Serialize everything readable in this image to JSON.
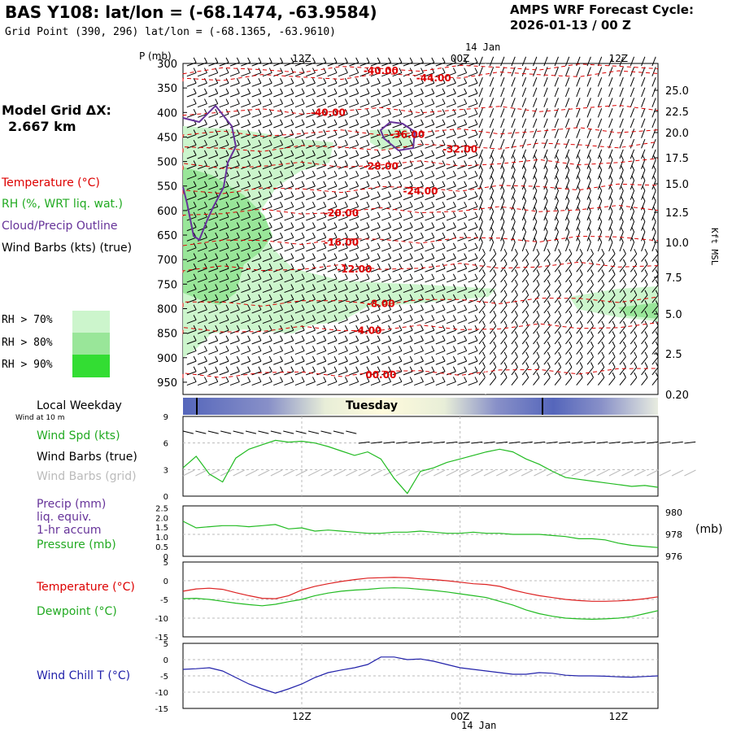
{
  "header": {
    "title": "BAS Y108:  lat/lon = (-68.1474, -63.9584)",
    "grid_point": "Grid Point (390, 296) lat/lon = (-68.1365, -63.9610)",
    "cycle_line1": "AMPS WRF Forecast Cycle:",
    "cycle_line2": "2026-01-13 / 00  Z"
  },
  "model_grid": {
    "label": "Model Grid ΔX:",
    "value": "2.667 km"
  },
  "legend": {
    "temperature": "Temperature (°C)",
    "rh": "RH (%, WRT liq. wat.)",
    "cloud": "Cloud/Precip Outline",
    "wind_barbs": "Wind Barbs (kts) (true)",
    "rh70": "RH > 70%",
    "rh80": "RH > 80%",
    "rh90": "RH > 90%",
    "colors": {
      "rh70": "#ccf5cc",
      "rh80": "#99e699",
      "rh90": "#33dd33",
      "temp": "#dd0000",
      "cloud": "#663399",
      "barb": "#000000"
    }
  },
  "top_axis": {
    "p_label": "P (mb)",
    "date_label": "14 Jan",
    "time_labels": [
      "12Z",
      "00Z",
      "12Z"
    ],
    "pressure_ticks": [
      "300",
      "350",
      "400",
      "450",
      "500",
      "550",
      "600",
      "650",
      "700",
      "750",
      "800",
      "850",
      "900",
      "950"
    ],
    "height_ticks": [
      "25.0",
      "22.5",
      "20.0",
      "17.5",
      "15.0",
      "12.5",
      "10.0",
      "7.5",
      "5.0",
      "2.5",
      "0.20"
    ],
    "height_label": "Kft MSL"
  },
  "day_bar": {
    "label": "Tuesday",
    "side_label": "Local Weekday",
    "wind_note": "Wind at 10 m"
  },
  "panels": {
    "wind": {
      "spd_label": "Wind Spd (kts)",
      "barbs_true_label": "Wind Barbs (true)",
      "barbs_grid_label": "Wind Barbs (grid)",
      "y_ticks": [
        "9",
        "6",
        "3",
        "0"
      ]
    },
    "precip": {
      "precip_label": "Precip (mm)",
      "liq_label": "liq. equiv.",
      "accum_label": "1-hr accum",
      "pressure_label": "Pressure (mb)",
      "y_ticks_left": [
        "2.5",
        "2.0",
        "1.5",
        "1.0",
        "0.5",
        "0"
      ],
      "y_ticks_right": [
        "980",
        "978",
        "976"
      ],
      "right_unit": "(mb)"
    },
    "temp": {
      "temp_label": "Temperature (°C)",
      "dew_label": "Dewpoint (°C)",
      "y_ticks": [
        "5",
        "0",
        "-5",
        "-10",
        "-15"
      ]
    },
    "chill": {
      "chill_label": "Wind Chill T (°C)",
      "y_ticks": [
        "5",
        "0",
        "-5",
        "-10",
        "-15"
      ]
    }
  },
  "bottom_axis": {
    "time_labels": [
      "12Z",
      "00Z",
      "12Z"
    ],
    "date_label": "14 Jan"
  },
  "chart_data": [
    {
      "type": "area",
      "name": "cross-section",
      "x_range_hours": [
        0,
        36
      ],
      "pressure_range_mb": [
        300,
        975
      ],
      "isotherms": [
        {
          "label": "-44.00",
          "value": -44,
          "x": 19,
          "p": 330
        },
        {
          "label": "-40.00",
          "value": -40,
          "x": 11,
          "p": 400
        },
        {
          "label": "-40.00",
          "value": -40,
          "x": 15,
          "p": 315
        },
        {
          "label": "-36.00",
          "value": -36,
          "x": 17,
          "p": 445
        },
        {
          "label": "-32.00",
          "value": -32,
          "x": 21,
          "p": 475
        },
        {
          "label": "-28.00",
          "value": -28,
          "x": 15,
          "p": 510
        },
        {
          "label": "-24.00",
          "value": -24,
          "x": 18,
          "p": 560
        },
        {
          "label": "-20.00",
          "value": -20,
          "x": 12,
          "p": 605
        },
        {
          "label": "-16.00",
          "value": -16,
          "x": 12,
          "p": 665
        },
        {
          "label": "-12.00",
          "value": -12,
          "x": 13,
          "p": 720
        },
        {
          "label": "-8.00",
          "value": -8,
          "x": 15,
          "p": 790
        },
        {
          "label": "-4.00",
          "value": -4,
          "x": 14,
          "p": 845
        },
        {
          "label": "00.00",
          "value": 0,
          "x": 15,
          "p": 935
        }
      ]
    },
    {
      "type": "line",
      "name": "wind-speed",
      "x": [
        0,
        1,
        2,
        3,
        4,
        5,
        6,
        7,
        8,
        9,
        10,
        11,
        12,
        13,
        14,
        15,
        16,
        17,
        18,
        19,
        20,
        21,
        22,
        23,
        24,
        25,
        26,
        27,
        28,
        29,
        30,
        31,
        32,
        33,
        34,
        35,
        36
      ],
      "series": [
        {
          "name": "Wind Spd (kts)",
          "values": [
            3.2,
            4.5,
            2.5,
            1.6,
            4.3,
            5.3,
            5.8,
            6.3,
            6.1,
            6.2,
            6.0,
            5.6,
            5.1,
            4.6,
            5.0,
            4.2,
            2.0,
            0.3,
            2.8,
            3.2,
            3.8,
            4.2,
            4.6,
            5.0,
            5.3,
            5.0,
            4.2,
            3.6,
            2.8,
            2.1,
            1.9,
            1.7,
            1.5,
            1.3,
            1.1,
            1.2,
            1.0
          ]
        }
      ],
      "ylim": [
        0,
        9
      ]
    },
    {
      "type": "line",
      "name": "pressure",
      "x": [
        0,
        1,
        2,
        3,
        4,
        5,
        6,
        7,
        8,
        9,
        10,
        11,
        12,
        13,
        14,
        15,
        16,
        17,
        18,
        19,
        20,
        21,
        22,
        23,
        24,
        25,
        26,
        27,
        28,
        29,
        30,
        31,
        32,
        33,
        34,
        35,
        36
      ],
      "series": [
        {
          "name": "Pressure (mb)",
          "values": [
            979.2,
            978.6,
            978.7,
            978.8,
            978.8,
            978.7,
            978.8,
            978.9,
            978.5,
            978.6,
            978.3,
            978.4,
            978.3,
            978.2,
            978.1,
            978.1,
            978.2,
            978.2,
            978.3,
            978.2,
            978.1,
            978.1,
            978.2,
            978.1,
            978.1,
            978.0,
            978.0,
            978.0,
            977.9,
            977.8,
            977.6,
            977.6,
            977.5,
            977.2,
            977.0,
            976.9,
            976.8
          ]
        }
      ],
      "ylim": [
        976,
        980.6
      ]
    },
    {
      "type": "line",
      "name": "temperature",
      "x": [
        0,
        1,
        2,
        3,
        4,
        5,
        6,
        7,
        8,
        9,
        10,
        11,
        12,
        13,
        14,
        15,
        16,
        17,
        18,
        19,
        20,
        21,
        22,
        23,
        24,
        25,
        26,
        27,
        28,
        29,
        30,
        31,
        32,
        33,
        34,
        35,
        36
      ],
      "series": [
        {
          "name": "Temperature (°C)",
          "values": [
            -2.8,
            -2.2,
            -2.0,
            -2.3,
            -3.2,
            -4.0,
            -4.7,
            -4.8,
            -4.0,
            -2.5,
            -1.5,
            -0.8,
            -0.2,
            0.3,
            0.7,
            0.8,
            0.9,
            0.8,
            0.5,
            0.3,
            0.0,
            -0.4,
            -0.8,
            -1.0,
            -1.5,
            -2.5,
            -3.3,
            -4.0,
            -4.5,
            -5.0,
            -5.3,
            -5.5,
            -5.5,
            -5.4,
            -5.2,
            -4.8,
            -4.3
          ]
        },
        {
          "name": "Dewpoint (°C)",
          "values": [
            -4.8,
            -4.7,
            -5.0,
            -5.5,
            -6.0,
            -6.4,
            -6.7,
            -6.3,
            -5.6,
            -5.0,
            -4.0,
            -3.3,
            -2.8,
            -2.5,
            -2.3,
            -2.0,
            -1.9,
            -2.0,
            -2.3,
            -2.6,
            -3.0,
            -3.5,
            -4.0,
            -4.5,
            -5.5,
            -6.5,
            -7.8,
            -8.8,
            -9.5,
            -10.0,
            -10.2,
            -10.3,
            -10.2,
            -10.0,
            -9.6,
            -8.8,
            -8.0
          ]
        }
      ],
      "ylim": [
        -15,
        5
      ]
    },
    {
      "type": "line",
      "name": "wind-chill",
      "x": [
        0,
        1,
        2,
        3,
        4,
        5,
        6,
        7,
        8,
        9,
        10,
        11,
        12,
        13,
        14,
        15,
        16,
        17,
        18,
        19,
        20,
        21,
        22,
        23,
        24,
        25,
        26,
        27,
        28,
        29,
        30,
        31,
        32,
        33,
        34,
        35,
        36
      ],
      "series": [
        {
          "name": "Wind Chill T (°C)",
          "values": [
            -3.0,
            -2.8,
            -2.5,
            -3.5,
            -5.5,
            -7.5,
            -9.0,
            -10.3,
            -9.0,
            -7.5,
            -5.5,
            -4.0,
            -3.2,
            -2.5,
            -1.5,
            0.8,
            0.8,
            0.0,
            0.2,
            -0.5,
            -1.5,
            -2.5,
            -3.0,
            -3.5,
            -4.0,
            -4.5,
            -4.5,
            -4.0,
            -4.2,
            -4.8,
            -5.0,
            -5.0,
            -5.1,
            -5.3,
            -5.4,
            -5.2,
            -5.0
          ]
        }
      ],
      "ylim": [
        -15,
        5
      ]
    }
  ]
}
